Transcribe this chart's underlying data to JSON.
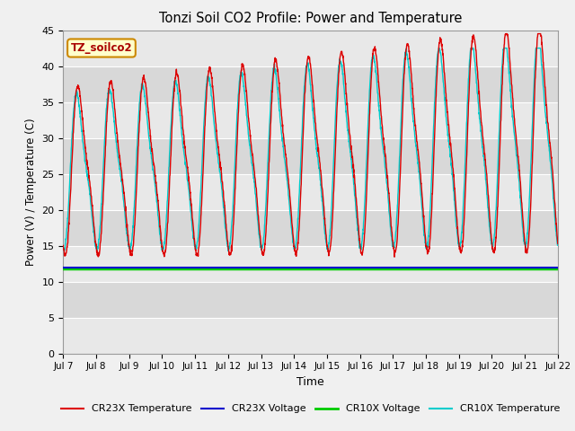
{
  "title": "Tonzi Soil CO2 Profile: Power and Temperature",
  "xlabel": "Time",
  "ylabel": "Power (V) / Temperature (C)",
  "ylim": [
    0,
    45
  ],
  "yticks": [
    0,
    5,
    10,
    15,
    20,
    25,
    30,
    35,
    40,
    45
  ],
  "x_tick_labels": [
    "Jul 7",
    "Jul 8",
    "Jul 9",
    "Jul 10",
    "Jul 11",
    "Jul 12",
    "Jul 13",
    "Jul 14",
    "Jul 15",
    "Jul 16",
    "Jul 17",
    "Jul 18",
    "Jul 19",
    "Jul 20",
    "Jul 21",
    "Jul 22"
  ],
  "cr23x_temp_color": "#dd0000",
  "cr23x_volt_color": "#0000cc",
  "cr10x_volt_color": "#00cc00",
  "cr10x_temp_color": "#00cccc",
  "cr10x_volt_value": 11.8,
  "cr23x_volt_value": 11.9,
  "fig_bg_color": "#f0f0f0",
  "plot_bg_color": "#e8e8e8",
  "annotation_text": "TZ_soilco2",
  "annotation_bg": "#ffffcc",
  "annotation_border": "#cc8800",
  "band_colors": [
    "#e8e8e8",
    "#d8d8d8"
  ],
  "grid_color": "#ffffff"
}
